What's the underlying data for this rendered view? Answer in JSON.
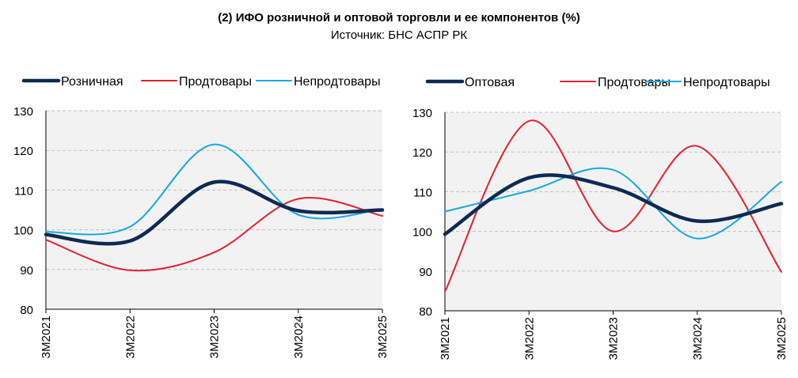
{
  "title": "(2) ИФО розничной и оптовой торговли и ее компонентов (%)",
  "subtitle": "Источник: БНС АСПР РК",
  "chart_data": [
    {
      "type": "line",
      "x": [
        "3М2021",
        "3М2022",
        "3М2023",
        "3М2024",
        "3М2025"
      ],
      "ylim": [
        80,
        130
      ],
      "yticks": [
        80,
        90,
        100,
        110,
        120,
        130
      ],
      "grid": true,
      "legend": "top",
      "series": [
        {
          "name": "Розничная",
          "color": "#0d2a52",
          "width": 4.5,
          "values": [
            98.8,
            97.2,
            112.0,
            104.8,
            105.0
          ]
        },
        {
          "name": "Продтовары",
          "color": "#e3202f",
          "width": 2,
          "values": [
            97.5,
            89.8,
            94.3,
            107.8,
            103.5
          ]
        },
        {
          "name": "Непродтовары",
          "color": "#16a9e1",
          "width": 2,
          "values": [
            99.5,
            100.8,
            121.5,
            103.8,
            105.2
          ]
        }
      ]
    },
    {
      "type": "line",
      "x": [
        "3М2021",
        "3М2022",
        "3М2023",
        "3М2024",
        "3М2025"
      ],
      "ylim": [
        80,
        130
      ],
      "yticks": [
        80,
        90,
        100,
        110,
        120,
        130
      ],
      "grid": true,
      "legend": "top",
      "series": [
        {
          "name": "Оптовая",
          "color": "#0d2a52",
          "width": 4.5,
          "values": [
            99.3,
            113.5,
            111.0,
            102.6,
            107.0
          ]
        },
        {
          "name": "Продтовары",
          "color": "#e3202f",
          "width": 2,
          "values": [
            84.8,
            127.8,
            100.0,
            121.5,
            89.8
          ]
        },
        {
          "name": "Непродтовары",
          "color": "#16a9e1",
          "width": 2,
          "values": [
            105.0,
            110.2,
            115.5,
            98.2,
            112.5
          ]
        }
      ]
    }
  ]
}
